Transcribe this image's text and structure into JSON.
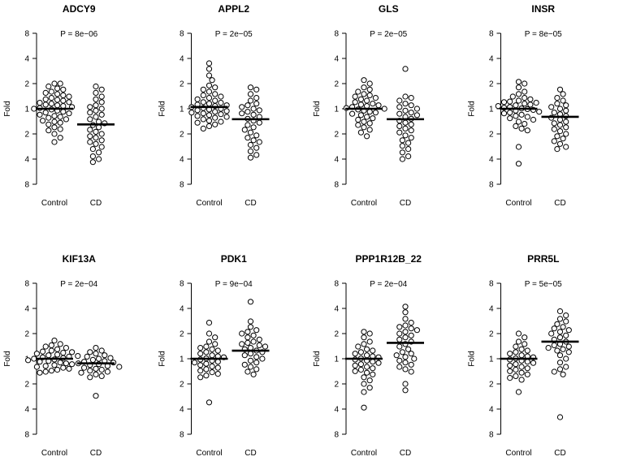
{
  "chart_data": [
    {
      "type": "scatter",
      "title": "ADCY9",
      "pvalue": "P = 8e−06",
      "ylabel": "Fold",
      "categories": [
        "Control",
        "CD"
      ],
      "yticks": [
        "8",
        "4",
        "2",
        "1",
        "2",
        "4",
        "8"
      ],
      "series": [
        {
          "name": "Control",
          "median": 1.0,
          "values": [
            2.0,
            2.0,
            1.85,
            1.75,
            1.7,
            1.6,
            1.55,
            1.5,
            1.45,
            1.4,
            1.35,
            1.3,
            1.28,
            1.25,
            1.2,
            1.18,
            1.15,
            1.12,
            1.1,
            1.08,
            1.05,
            1.02,
            1.0,
            0.98,
            0.95,
            0.92,
            0.9,
            0.88,
            0.85,
            0.82,
            0.8,
            0.78,
            0.75,
            0.72,
            0.7,
            0.68,
            0.65,
            0.6,
            0.57,
            0.55,
            0.5,
            0.45,
            0.4
          ]
        },
        {
          "name": "CD",
          "median": 0.65,
          "values": [
            1.85,
            1.7,
            1.55,
            1.4,
            1.3,
            1.2,
            1.1,
            1.05,
            1.0,
            0.95,
            0.9,
            0.85,
            0.8,
            0.75,
            0.7,
            0.67,
            0.64,
            0.6,
            0.56,
            0.53,
            0.5,
            0.47,
            0.45,
            0.42,
            0.4,
            0.38,
            0.35,
            0.33,
            0.3,
            0.27,
            0.25,
            0.23
          ]
        }
      ]
    },
    {
      "type": "scatter",
      "title": "APPL2",
      "pvalue": "P = 2e−05",
      "ylabel": "Fold",
      "categories": [
        "Control",
        "CD"
      ],
      "yticks": [
        "8",
        "4",
        "2",
        "1",
        "2",
        "4",
        "8"
      ],
      "series": [
        {
          "name": "Control",
          "median": 1.05,
          "values": [
            3.5,
            3.0,
            2.5,
            2.2,
            1.9,
            1.8,
            1.7,
            1.6,
            1.5,
            1.45,
            1.4,
            1.35,
            1.3,
            1.25,
            1.2,
            1.18,
            1.15,
            1.12,
            1.1,
            1.08,
            1.05,
            1.02,
            1.0,
            0.98,
            0.96,
            0.94,
            0.92,
            0.9,
            0.88,
            0.86,
            0.84,
            0.82,
            0.8,
            0.78,
            0.75,
            0.72,
            0.7,
            0.68,
            0.65,
            0.62,
            0.58
          ]
        },
        {
          "name": "CD",
          "median": 0.75,
          "values": [
            1.8,
            1.7,
            1.5,
            1.35,
            1.25,
            1.15,
            1.1,
            1.05,
            1.0,
            0.96,
            0.92,
            0.88,
            0.85,
            0.8,
            0.76,
            0.72,
            0.68,
            0.64,
            0.6,
            0.56,
            0.52,
            0.48,
            0.45,
            0.42,
            0.4,
            0.37,
            0.34,
            0.31,
            0.28,
            0.26
          ]
        }
      ]
    },
    {
      "type": "scatter",
      "title": "GLS",
      "pvalue": "P = 2e−05",
      "ylabel": "Fold",
      "categories": [
        "Control",
        "CD"
      ],
      "yticks": [
        "8",
        "4",
        "2",
        "1",
        "2",
        "4",
        "8"
      ],
      "series": [
        {
          "name": "Control",
          "median": 1.0,
          "values": [
            2.2,
            2.0,
            1.8,
            1.7,
            1.6,
            1.5,
            1.45,
            1.4,
            1.35,
            1.3,
            1.25,
            1.2,
            1.15,
            1.12,
            1.1,
            1.08,
            1.05,
            1.02,
            1.0,
            0.98,
            0.95,
            0.92,
            0.9,
            0.87,
            0.84,
            0.8,
            0.77,
            0.74,
            0.7,
            0.67,
            0.64,
            0.6,
            0.56,
            0.52,
            0.47
          ]
        },
        {
          "name": "CD",
          "median": 0.75,
          "values": [
            3.0,
            1.4,
            1.35,
            1.25,
            1.15,
            1.1,
            1.05,
            1.0,
            0.95,
            0.9,
            0.87,
            0.84,
            0.8,
            0.76,
            0.72,
            0.68,
            0.65,
            0.62,
            0.58,
            0.55,
            0.52,
            0.48,
            0.45,
            0.42,
            0.39,
            0.36,
            0.33,
            0.3,
            0.27,
            0.25
          ]
        }
      ]
    },
    {
      "type": "scatter",
      "title": "INSR",
      "pvalue": "P = 8e−05",
      "ylabel": "Fold",
      "categories": [
        "Control",
        "CD"
      ],
      "yticks": [
        "8",
        "4",
        "2",
        "1",
        "2",
        "4",
        "8"
      ],
      "series": [
        {
          "name": "Control",
          "median": 1.0,
          "values": [
            2.1,
            2.0,
            1.8,
            1.6,
            1.5,
            1.4,
            1.35,
            1.3,
            1.25,
            1.22,
            1.2,
            1.18,
            1.15,
            1.12,
            1.1,
            1.08,
            1.05,
            1.03,
            1.01,
            0.99,
            0.97,
            0.95,
            0.92,
            0.9,
            0.88,
            0.85,
            0.82,
            0.8,
            0.77,
            0.74,
            0.7,
            0.66,
            0.62,
            0.58,
            0.55,
            0.35,
            0.22
          ]
        },
        {
          "name": "CD",
          "median": 0.8,
          "values": [
            1.7,
            1.5,
            1.35,
            1.25,
            1.15,
            1.1,
            1.05,
            1.0,
            0.95,
            0.9,
            0.86,
            0.82,
            0.78,
            0.74,
            0.7,
            0.67,
            0.64,
            0.6,
            0.57,
            0.54,
            0.5,
            0.47,
            0.44,
            0.41,
            0.38,
            0.35,
            0.33
          ]
        }
      ]
    },
    {
      "type": "scatter",
      "title": "KIF13A",
      "pvalue": "P = 2e−04",
      "ylabel": "Fold",
      "categories": [
        "Control",
        "CD"
      ],
      "yticks": [
        "8",
        "4",
        "2",
        "1",
        "2",
        "4",
        "8"
      ],
      "series": [
        {
          "name": "Control",
          "median": 1.0,
          "values": [
            1.65,
            1.5,
            1.45,
            1.4,
            1.35,
            1.3,
            1.25,
            1.22,
            1.2,
            1.18,
            1.15,
            1.12,
            1.1,
            1.08,
            1.06,
            1.04,
            1.02,
            1.0,
            0.98,
            0.96,
            0.94,
            0.92,
            0.9,
            0.88,
            0.86,
            0.84,
            0.82,
            0.8,
            0.78,
            0.76,
            0.74,
            0.72,
            0.7,
            0.68
          ]
        },
        {
          "name": "CD",
          "median": 0.88,
          "values": [
            1.35,
            1.25,
            1.2,
            1.15,
            1.1,
            1.06,
            1.02,
            1.0,
            0.97,
            0.94,
            0.92,
            0.9,
            0.88,
            0.86,
            0.84,
            0.82,
            0.8,
            0.78,
            0.76,
            0.74,
            0.72,
            0.7,
            0.68,
            0.65,
            0.62,
            0.6,
            0.36
          ]
        }
      ]
    },
    {
      "type": "scatter",
      "title": "PDK1",
      "pvalue": "P = 9e−04",
      "ylabel": "Fold",
      "categories": [
        "Control",
        "CD"
      ],
      "yticks": [
        "8",
        "4",
        "2",
        "1",
        "2",
        "4",
        "8"
      ],
      "series": [
        {
          "name": "Control",
          "median": 1.0,
          "values": [
            2.7,
            2.0,
            1.8,
            1.6,
            1.5,
            1.4,
            1.35,
            1.3,
            1.25,
            1.2,
            1.15,
            1.1,
            1.07,
            1.04,
            1.01,
            0.98,
            0.95,
            0.92,
            0.9,
            0.87,
            0.84,
            0.81,
            0.78,
            0.75,
            0.72,
            0.69,
            0.66,
            0.63,
            0.6,
            0.3
          ]
        },
        {
          "name": "CD",
          "median": 1.25,
          "values": [
            4.8,
            2.8,
            2.4,
            2.2,
            2.1,
            2.0,
            1.9,
            1.8,
            1.7,
            1.6,
            1.55,
            1.5,
            1.45,
            1.4,
            1.35,
            1.3,
            1.25,
            1.2,
            1.15,
            1.1,
            1.05,
            1.0,
            0.95,
            0.9,
            0.85,
            0.8,
            0.75,
            0.7,
            0.65
          ]
        }
      ]
    },
    {
      "type": "scatter",
      "title": "PPP1R12B_22",
      "pvalue": "P = 2e−04",
      "ylabel": "Fold",
      "categories": [
        "Control",
        "CD"
      ],
      "yticks": [
        "8",
        "4",
        "2",
        "1",
        "2",
        "4",
        "8"
      ],
      "series": [
        {
          "name": "Control",
          "median": 1.0,
          "values": [
            2.1,
            2.0,
            1.8,
            1.6,
            1.5,
            1.4,
            1.3,
            1.25,
            1.2,
            1.15,
            1.1,
            1.07,
            1.04,
            1.01,
            0.98,
            0.95,
            0.92,
            0.89,
            0.86,
            0.83,
            0.8,
            0.77,
            0.74,
            0.71,
            0.68,
            0.65,
            0.6,
            0.55,
            0.5,
            0.45,
            0.4,
            0.26
          ]
        },
        {
          "name": "CD",
          "median": 1.55,
          "values": [
            4.2,
            3.6,
            3.0,
            2.7,
            2.5,
            2.4,
            2.3,
            2.2,
            2.1,
            2.0,
            1.9,
            1.8,
            1.7,
            1.6,
            1.5,
            1.4,
            1.3,
            1.2,
            1.15,
            1.1,
            1.05,
            1.0,
            0.95,
            0.9,
            0.85,
            0.8,
            0.75,
            0.7,
            0.5,
            0.42
          ]
        }
      ]
    },
    {
      "type": "scatter",
      "title": "PRR5L",
      "pvalue": "P = 5e−05",
      "ylabel": "Fold",
      "categories": [
        "Control",
        "CD"
      ],
      "yticks": [
        "8",
        "4",
        "2",
        "1",
        "2",
        "4",
        "8"
      ],
      "series": [
        {
          "name": "Control",
          "median": 1.0,
          "values": [
            2.0,
            1.8,
            1.6,
            1.5,
            1.4,
            1.3,
            1.25,
            1.2,
            1.15,
            1.1,
            1.07,
            1.04,
            1.01,
            0.98,
            0.95,
            0.92,
            0.89,
            0.86,
            0.83,
            0.8,
            0.77,
            0.74,
            0.71,
            0.68,
            0.65,
            0.62,
            0.59,
            0.56,
            0.4
          ]
        },
        {
          "name": "CD",
          "median": 1.6,
          "values": [
            3.7,
            3.3,
            3.0,
            2.8,
            2.6,
            2.4,
            2.3,
            2.2,
            2.1,
            2.0,
            1.9,
            1.8,
            1.7,
            1.6,
            1.5,
            1.45,
            1.4,
            1.35,
            1.3,
            1.25,
            1.2,
            1.1,
            1.0,
            0.9,
            0.8,
            0.75,
            0.7,
            0.65,
            0.2
          ]
        }
      ]
    }
  ]
}
